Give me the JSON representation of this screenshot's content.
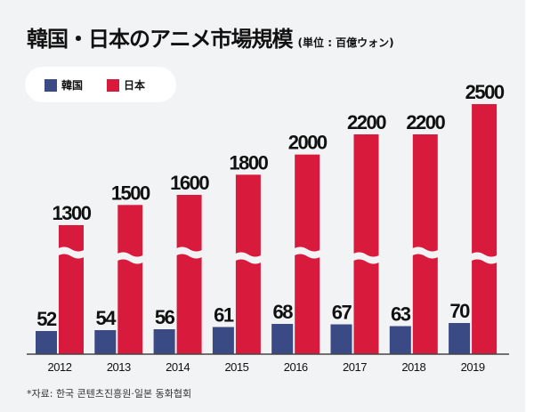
{
  "chart_data": {
    "type": "bar",
    "title": "韓国・日本のアニメ市場規模",
    "unit_note": "(単位 : 百億ウォン)",
    "categories": [
      "2012",
      "2013",
      "2014",
      "2015",
      "2016",
      "2017",
      "2018",
      "2019"
    ],
    "series": [
      {
        "name": "韓国",
        "color": "#3a4a84",
        "values": [
          52,
          54,
          56,
          61,
          68,
          67,
          63,
          70
        ]
      },
      {
        "name": "日本",
        "color": "#d81b3c",
        "values": [
          1300,
          1500,
          1600,
          1800,
          2000,
          2200,
          2200,
          2500
        ]
      }
    ],
    "axis_break": true,
    "grid": false,
    "legend_position": "top-left",
    "source": "*자료: 한국 콘텐츠진흥원·일본 동화협회"
  }
}
